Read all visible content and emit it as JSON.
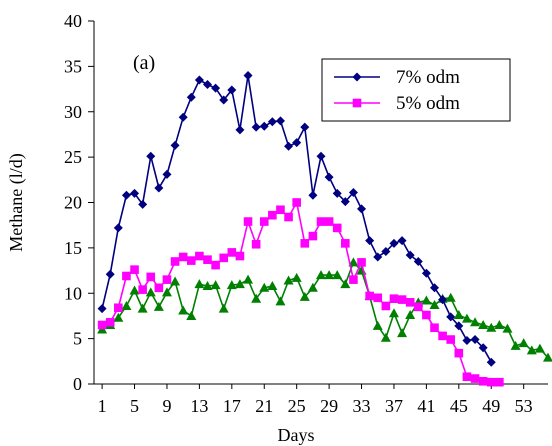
{
  "chart_data": {
    "type": "line",
    "panel_label": "(a)",
    "xlabel": "Days",
    "ylabel": "Methane (l/d)",
    "xlim": [
      0,
      56
    ],
    "ylim": [
      0,
      40
    ],
    "x_ticks": [
      1,
      5,
      9,
      13,
      17,
      21,
      25,
      29,
      33,
      37,
      41,
      45,
      49,
      53
    ],
    "y_ticks": [
      0,
      5,
      10,
      15,
      20,
      25,
      30,
      35,
      40
    ],
    "grid": false,
    "legend_position": "top-right",
    "series": [
      {
        "name": "7% odm",
        "color": "#000080",
        "marker": "diamond",
        "x": [
          1,
          2,
          3,
          4,
          5,
          6,
          7,
          8,
          9,
          10,
          11,
          12,
          13,
          14,
          15,
          16,
          17,
          18,
          19,
          20,
          21,
          22,
          23,
          24,
          25,
          26,
          27,
          28,
          29,
          30,
          31,
          32,
          33,
          34,
          35,
          36,
          37,
          38,
          39,
          40,
          41,
          42,
          43,
          44,
          45,
          46,
          47,
          48,
          49
        ],
        "values": [
          8.3,
          12.1,
          17.2,
          20.8,
          21.0,
          19.8,
          25.1,
          21.6,
          23.1,
          26.3,
          29.4,
          31.6,
          33.5,
          33.0,
          32.6,
          31.3,
          32.4,
          28.0,
          34.0,
          28.3,
          28.4,
          28.9,
          29.0,
          26.2,
          26.6,
          28.3,
          20.8,
          25.1,
          22.8,
          21.0,
          20.1,
          21.1,
          19.3,
          15.8,
          14.0,
          14.6,
          15.5,
          15.8,
          14.2,
          13.5,
          12.2,
          10.6,
          9.3,
          7.4,
          6.4,
          4.8,
          4.9,
          4.0,
          2.4
        ]
      },
      {
        "name": "5% odm",
        "color": "#FF00FF",
        "marker": "square",
        "x": [
          1,
          2,
          3,
          4,
          5,
          6,
          7,
          8,
          9,
          10,
          11,
          12,
          13,
          14,
          15,
          16,
          17,
          18,
          19,
          20,
          21,
          22,
          23,
          24,
          25,
          26,
          27,
          28,
          29,
          30,
          31,
          32,
          33,
          34,
          35,
          36,
          37,
          38,
          39,
          40,
          41,
          42,
          43,
          44,
          45,
          46,
          47,
          48,
          49,
          50
        ],
        "values": [
          6.5,
          6.8,
          8.4,
          11.9,
          12.6,
          10.4,
          11.8,
          10.6,
          11.5,
          13.5,
          14.0,
          13.6,
          14.1,
          13.7,
          13.1,
          13.9,
          14.5,
          14.1,
          17.9,
          15.4,
          17.9,
          18.6,
          19.2,
          18.4,
          20.0,
          15.5,
          16.3,
          17.9,
          17.9,
          17.2,
          15.5,
          11.5,
          13.4,
          9.7,
          9.5,
          8.6,
          9.4,
          9.3,
          9.0,
          8.5,
          7.6,
          6.2,
          5.3,
          4.9,
          3.4,
          0.8,
          0.6,
          0.3,
          0.2,
          0.2
        ]
      },
      {
        "name": "",
        "color": "#008000",
        "marker": "triangle",
        "x": [
          1,
          2,
          3,
          4,
          5,
          6,
          7,
          8,
          9,
          10,
          11,
          12,
          13,
          14,
          15,
          16,
          17,
          18,
          19,
          20,
          21,
          22,
          23,
          24,
          25,
          26,
          27,
          28,
          29,
          30,
          31,
          32,
          33,
          34,
          35,
          36,
          37,
          38,
          39,
          40,
          41,
          42,
          43,
          44,
          45,
          46,
          47,
          48,
          49,
          50,
          51,
          52,
          53,
          54,
          55,
          56
        ],
        "values": [
          6.0,
          6.5,
          7.3,
          8.6,
          10.3,
          8.3,
          10.1,
          8.5,
          10.1,
          11.3,
          8.1,
          7.5,
          11.0,
          10.8,
          10.9,
          8.3,
          10.9,
          11.0,
          11.5,
          9.4,
          10.6,
          10.8,
          9.1,
          11.4,
          11.7,
          9.6,
          10.6,
          12.0,
          12.0,
          12.0,
          11.0,
          13.4,
          12.5,
          9.7,
          6.4,
          5.1,
          7.8,
          5.6,
          7.6,
          9.0,
          9.2,
          8.7,
          9.4,
          9.5,
          7.6,
          7.2,
          6.8,
          6.5,
          6.2,
          6.5,
          6.1,
          4.2,
          4.5,
          3.7,
          3.9,
          2.9
        ]
      }
    ]
  }
}
